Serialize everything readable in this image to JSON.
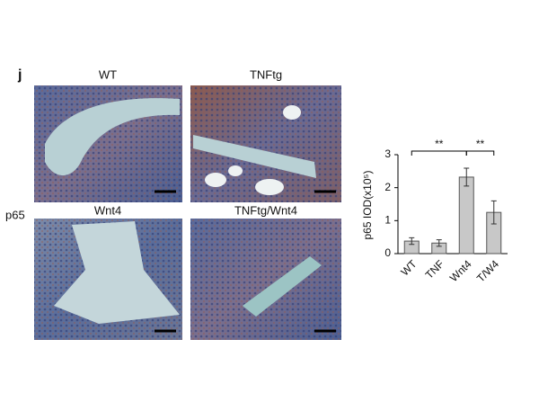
{
  "panel_label": "j",
  "row_label": "p65",
  "images": [
    {
      "label": "WT"
    },
    {
      "label": "TNFtg"
    },
    {
      "label": "Wnt4"
    },
    {
      "label": "TNFtg/Wnt4"
    }
  ],
  "chart_data": {
    "type": "bar",
    "y_label": "p65 IOD(x10⁵)",
    "categories": [
      "WT",
      "TNF",
      "Wnt4",
      "T/W4"
    ],
    "values": [
      0.38,
      0.32,
      2.32,
      1.25
    ],
    "errors": [
      0.1,
      0.1,
      0.27,
      0.35
    ],
    "color": "#c8c8c8",
    "ylim": [
      0,
      3
    ],
    "yticks": [
      0,
      1,
      2,
      3
    ],
    "annotations": [
      "**",
      "**"
    ]
  }
}
